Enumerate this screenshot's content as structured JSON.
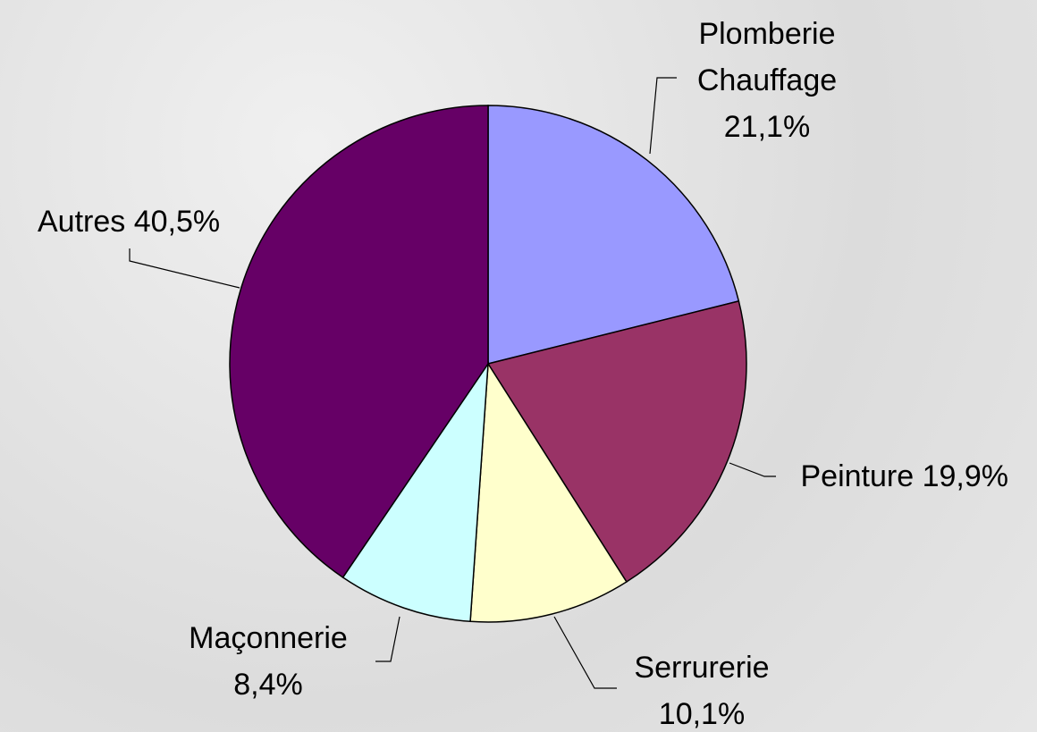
{
  "chart_data": {
    "type": "pie",
    "categories": [
      "Plomberie Chauffage",
      "Peinture",
      "Serrurerie",
      "Maçonnerie",
      "Autres"
    ],
    "values": [
      21.1,
      19.9,
      10.1,
      8.4,
      40.5
    ],
    "value_labels": [
      "21,1%",
      "19,9%",
      "10,1%",
      "8,4%",
      "40,5%"
    ],
    "colors": [
      "#9999ff",
      "#993366",
      "#ffffcc",
      "#ccffff",
      "#660066"
    ]
  }
}
